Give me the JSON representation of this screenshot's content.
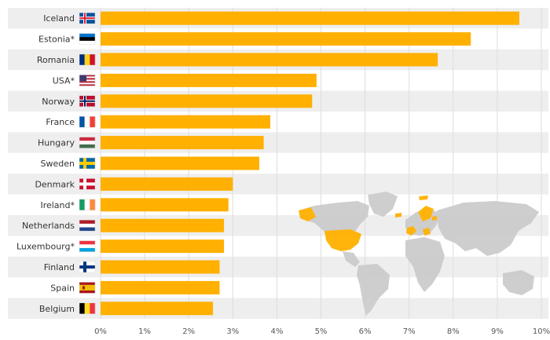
{
  "chart_data": {
    "type": "bar",
    "orientation": "horizontal",
    "categories": [
      "Iceland",
      "Estonia*",
      "Romania",
      "USA*",
      "Norway",
      "France",
      "Hungary",
      "Sweden",
      "Denmark",
      "Ireland*",
      "Netherlands",
      "Luxembourg*",
      "Finland",
      "Spain",
      "Belgium"
    ],
    "values": [
      9.5,
      8.4,
      7.65,
      4.9,
      4.8,
      3.85,
      3.7,
      3.6,
      3.0,
      2.9,
      2.8,
      2.8,
      2.7,
      2.7,
      2.55
    ],
    "flags": [
      "iceland",
      "estonia",
      "romania",
      "usa",
      "norway",
      "france",
      "hungary",
      "sweden",
      "denmark",
      "ireland",
      "netherlands",
      "luxembourg",
      "finland",
      "spain",
      "belgium"
    ],
    "xlim": [
      0,
      10
    ],
    "x_ticks": [
      "0%",
      "1%",
      "2%",
      "3%",
      "4%",
      "5%",
      "6%",
      "7%",
      "8%",
      "9%",
      "10%"
    ],
    "grid": true,
    "bar_color": "#FFB000",
    "row_band_color": "#EEEEEE",
    "map_base_color": "#CCCCCC",
    "map_highlight_color": "#FFB000",
    "inset": "world map with highlighted countries"
  }
}
